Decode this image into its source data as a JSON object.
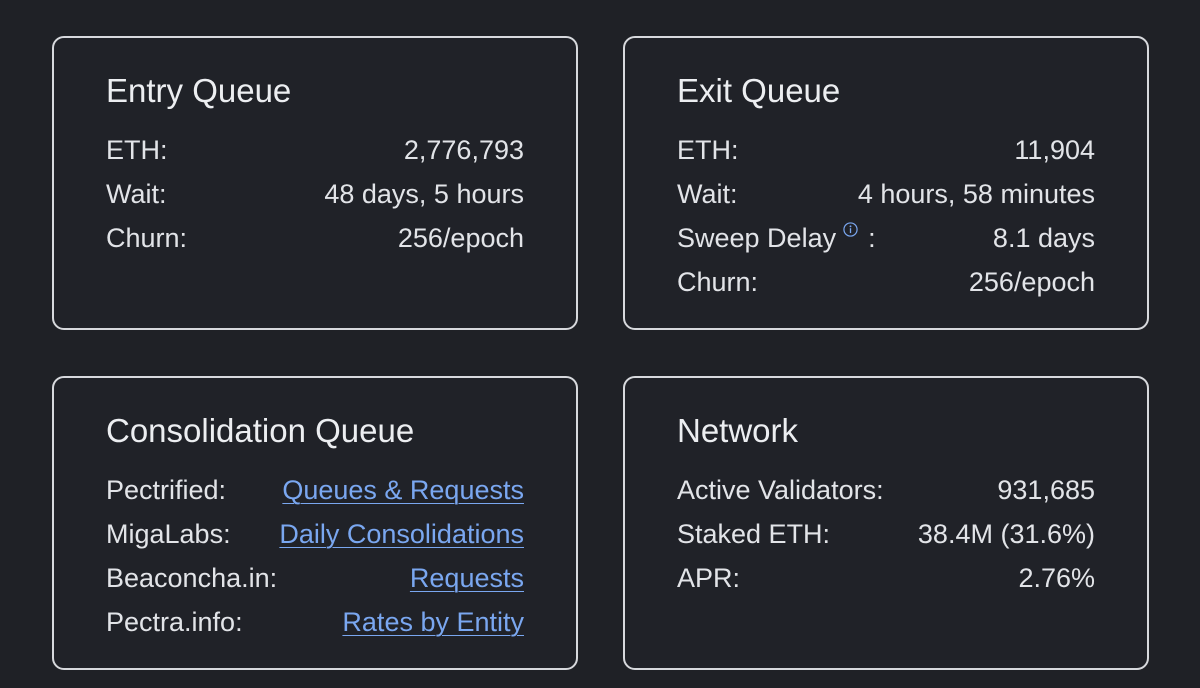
{
  "entry": {
    "title": "Entry Queue",
    "rows": [
      {
        "label": "ETH:",
        "value": "2,776,793"
      },
      {
        "label": "Wait:",
        "value": "48 days, 5 hours"
      },
      {
        "label": "Churn:",
        "value": "256/epoch"
      }
    ]
  },
  "exit": {
    "title": "Exit Queue",
    "rows": [
      {
        "label": "ETH:",
        "value": "11,904"
      },
      {
        "label": "Wait:",
        "value": "4 hours, 58 minutes"
      },
      {
        "label": "Sweep Delay",
        "suffix": ":",
        "value": "8.1 days"
      },
      {
        "label": "Churn:",
        "value": "256/epoch"
      }
    ]
  },
  "consolidation": {
    "title": "Consolidation Queue",
    "rows": [
      {
        "label": "Pectrified:",
        "link": "Queues & Requests"
      },
      {
        "label": "MigaLabs:",
        "link": "Daily Consolidations"
      },
      {
        "label": "Beaconcha.in:",
        "link": "Requests"
      },
      {
        "label": "Pectra.info:",
        "link": "Rates by Entity"
      }
    ]
  },
  "network": {
    "title": "Network",
    "rows": [
      {
        "label": "Active Validators:",
        "value": "931,685"
      },
      {
        "label": "Staked ETH:",
        "value": "38.4M (31.6%)"
      },
      {
        "label": "APR:",
        "value": "2.76%"
      }
    ]
  },
  "colors": {
    "background": "#1f2126",
    "card_border": "#d7d9dd",
    "text": "#e2e4e8",
    "link": "#7aa7f0"
  },
  "icons": {
    "sweep_delay_info": "info-circle-icon"
  }
}
